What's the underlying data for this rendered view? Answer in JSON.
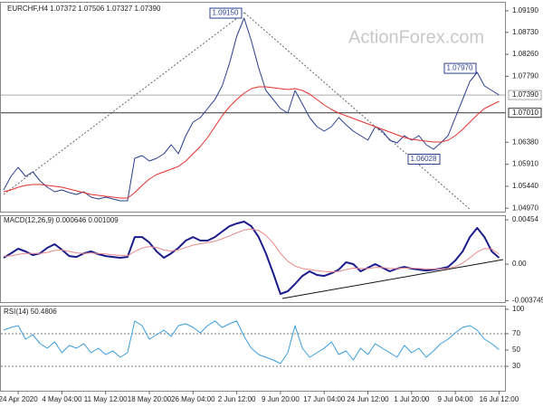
{
  "chart_data": [
    {
      "type": "line",
      "title": "EURCHF,H4  1.07372 1.07506 1.07327 1.07390",
      "watermark": "ActionForex.com",
      "categories": [
        null,
        null,
        "24 Apr 2020",
        null,
        null,
        null,
        null,
        null,
        "4 May 04:00",
        null,
        null,
        null,
        null,
        null,
        "11 May 12:00",
        null,
        null,
        null,
        null,
        null,
        "18 May 20:00",
        null,
        null,
        null,
        null,
        null,
        "26 May 04:00",
        null,
        null,
        null,
        null,
        null,
        "2 Jun 12:00",
        null,
        null,
        null,
        null,
        null,
        "9 Jun 20:00",
        null,
        null,
        null,
        null,
        null,
        "17 Jun 04:00",
        null,
        null,
        null,
        null,
        null,
        "24 Jun 12:00",
        null,
        null,
        null,
        null,
        null,
        "1 Jul 20:00",
        null,
        null,
        null,
        null,
        null,
        "9 Jul 04:00",
        null,
        null,
        null,
        null,
        null,
        "16 Jul 12:00"
      ],
      "series": [
        {
          "color": "#2b3f8f",
          "values": [
            1.05361,
            1.05651,
            1.05844,
            1.05651,
            1.05747,
            1.05554,
            1.05419,
            1.05322,
            1.05361,
            1.05303,
            1.05264,
            1.05322,
            1.05206,
            1.05167,
            1.05206,
            1.05167,
            1.05129,
            1.05129,
            1.06038,
            1.06096,
            1.0598,
            1.06038,
            1.06134,
            1.06328,
            1.06134,
            1.06521,
            1.06811,
            1.06908,
            1.07101,
            1.07295,
            1.07585,
            1.08068,
            1.08648,
            1.09035,
            1.08552,
            1.07972,
            1.07488,
            1.07295,
            1.07101,
            1.07005,
            1.07488,
            1.07198,
            1.06908,
            1.06714,
            1.06618,
            1.06714,
            1.06908,
            1.06753,
            1.06618,
            1.06521,
            1.06424,
            1.06714,
            1.06618,
            1.06424,
            1.06366,
            1.06521,
            1.06424,
            1.06521,
            1.06328,
            1.06231,
            1.06366,
            1.06521,
            1.06908,
            1.07295,
            1.07681,
            1.07875,
            1.07585,
            1.07488,
            1.07391
          ]
        },
        {
          "color": "#e3312d",
          "values": [
            1.05322,
            1.05361,
            1.05419,
            1.05457,
            1.05477,
            1.05477,
            1.05457,
            1.05438,
            1.05419,
            1.0538,
            1.05341,
            1.05303,
            1.05264,
            1.05245,
            1.05225,
            1.05206,
            1.05187,
            1.05187,
            1.05303,
            1.05457,
            1.05593,
            1.0569,
            1.05747,
            1.05806,
            1.05864,
            1.0598,
            1.06134,
            1.06289,
            1.06483,
            1.06714,
            1.06947,
            1.0714,
            1.07295,
            1.0743,
            1.07527,
            1.07566,
            1.07566,
            1.07546,
            1.07527,
            1.07507,
            1.07527,
            1.07488,
            1.07411,
            1.07295,
            1.07179,
            1.07082,
            1.07005,
            1.06947,
            1.06889,
            1.06831,
            1.06773,
            1.06714,
            1.06656,
            1.06598,
            1.0654,
            1.06483,
            1.06444,
            1.06424,
            1.06405,
            1.06386,
            1.06386,
            1.06424,
            1.06521,
            1.06656,
            1.06811,
            1.06966,
            1.07101,
            1.07179,
            1.07256
          ]
        }
      ],
      "ylim": [
        1.04897,
        1.09383
      ],
      "yticks": [
        {
          "value": 1.0919,
          "label": "1.09190"
        },
        {
          "value": 1.0873,
          "label": "1.08730"
        },
        {
          "value": 1.0826,
          "label": "1.08260"
        },
        {
          "value": 1.0779,
          "label": "1.07790"
        },
        {
          "value": 1.0638,
          "label": "1.06380"
        },
        {
          "value": 1.0591,
          "label": "1.05910"
        },
        {
          "value": 1.0544,
          "label": "1.05440"
        },
        {
          "value": 1.0497,
          "label": "1.04970"
        }
      ],
      "price_lines": [
        {
          "value": 1.0739,
          "label": "1.07390",
          "color": "#aaaaaa"
        },
        {
          "value": 1.0701,
          "label": "1.07010",
          "color": "#333333"
        }
      ],
      "annotations": [
        {
          "value": 1.0915,
          "label": "1.09150"
        },
        {
          "value": 1.0797,
          "label": "1.07970"
        },
        {
          "value": 1.06028,
          "label": "1.06028"
        }
      ]
    },
    {
      "type": "line",
      "title": "MACD(12,26,9) 0.000646 0.001009",
      "series": [
        {
          "color": "#1c1c8c",
          "values": [
            0.00065,
            0.00111,
            0.00158,
            0.0013,
            0.00093,
            0.00111,
            0.00167,
            0.00204,
            0.00148,
            0.00083,
            0.00074,
            0.00111,
            0.0013,
            0.00102,
            0.00083,
            0.00074,
            0.00065,
            0.00074,
            0.00278,
            0.00278,
            0.00222,
            0.0013,
            0.00065,
            0.00111,
            0.00167,
            0.00241,
            0.00278,
            0.00241,
            0.00241,
            0.00278,
            0.00334,
            0.00389,
            0.00417,
            0.00436,
            0.00389,
            0.00278,
            0.00111,
            -0.00093,
            -0.00306,
            -0.00278,
            -0.00204,
            -0.00121,
            -0.00074,
            -0.00111,
            -0.00121,
            -0.00093,
            -0.00056,
            0.00019,
            0,
            -0.00074,
            -0.00037,
            0,
            -0.00037,
            -0.00074,
            -0.00046,
            -0.00028,
            -0.00046,
            -0.00056,
            -0.00065,
            -0.00056,
            -0.00046,
            -0.00028,
            0.00037,
            0.0013,
            0.00278,
            0.00371,
            0.00278,
            0.0013,
            0.00065
          ]
        },
        {
          "color": "#e88a8a",
          "values": [
            0.0008,
            0.00085,
            0.001,
            0.0011,
            0.0011,
            0.0011,
            0.0012,
            0.0014,
            0.00145,
            0.0013,
            0.00115,
            0.0011,
            0.00115,
            0.0011,
            0.00105,
            0.00095,
            0.0009,
            0.00085,
            0.0013,
            0.00165,
            0.0018,
            0.0017,
            0.00145,
            0.00135,
            0.00145,
            0.0017,
            0.00195,
            0.0021,
            0.0022,
            0.00235,
            0.0026,
            0.0029,
            0.0032,
            0.0035,
            0.0036,
            0.00345,
            0.00295,
            0.00215,
            0.0011,
            0.0003,
            -0.0002,
            -0.00045,
            -0.00055,
            -0.00065,
            -0.00075,
            -0.0008,
            -0.00075,
            -0.00055,
            -0.0004,
            -0.00045,
            -0.00045,
            -0.00035,
            -0.00035,
            -0.00045,
            -0.00045,
            -0.0004,
            -0.0004,
            -0.00045,
            -0.0005,
            -0.0005,
            -0.0005,
            -0.00045,
            -0.00025,
            0.0001,
            0.00065,
            0.00125,
            0.0016,
            0.00155,
            0.00101
          ]
        }
      ],
      "ylim": [
        -0.00389,
        0.00501
      ],
      "yticks": [
        0.00454,
        {
          "value": 0,
          "label": "0.00"
        },
        -0.003745
      ]
    },
    {
      "type": "line",
      "title": "RSI(14) 50.4806",
      "series": [
        {
          "color": "#3b9ddd",
          "values": [
            74.4,
            77.8,
            80,
            63.3,
            68.9,
            57.8,
            52.2,
            60,
            46.7,
            55.6,
            52.2,
            57.8,
            46.7,
            52.2,
            44.4,
            48.9,
            41.1,
            46.7,
            85.6,
            80,
            63.3,
            68.9,
            74.4,
            66.7,
            80,
            82.2,
            77.8,
            71.1,
            80,
            85.6,
            77.8,
            82.2,
            85.6,
            66.7,
            52.2,
            44.4,
            41.1,
            37.8,
            33.3,
            46.7,
            80,
            52.2,
            41.1,
            46.7,
            52.2,
            60,
            44.4,
            48.9,
            37.8,
            52.2,
            44.4,
            57.8,
            52.2,
            46.7,
            41.1,
            55.6,
            46.7,
            52.2,
            41.1,
            48.9,
            57.8,
            63.3,
            71.1,
            77.8,
            80,
            74.4,
            63.3,
            57.8,
            50.5
          ]
        }
      ],
      "ylim": [
        0,
        104.4
      ],
      "yticks": [
        30,
        50,
        70,
        100
      ],
      "levels": [
        30,
        70
      ]
    }
  ]
}
